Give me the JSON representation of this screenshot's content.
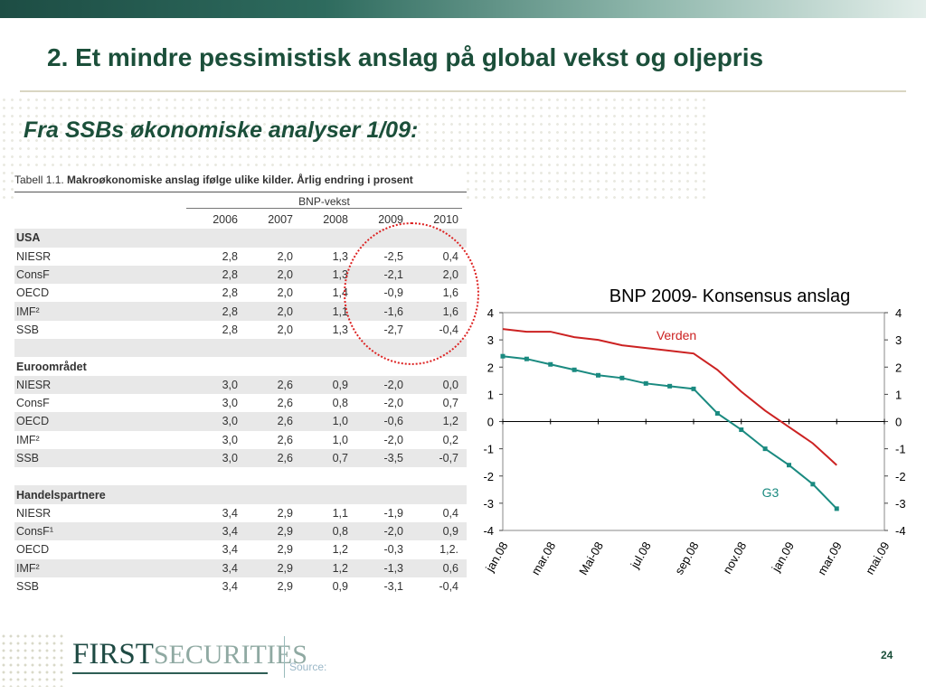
{
  "slide": {
    "title": "2. Et mindre pessimistisk anslag på global vekst og oljepris",
    "subtitle": "Fra SSBs økonomiske analyser 1/09:",
    "source_label": "Source:",
    "page_number": "24",
    "logo_first": "FIRST",
    "logo_second": "SECURITIES"
  },
  "table": {
    "caption_prefix": "Tabell 1.1.",
    "caption_text": "Makroøkonomiske anslag ifølge ulike kilder. Årlig endring i prosent",
    "group_header": "BNP-vekst",
    "years": [
      "2006",
      "2007",
      "2008",
      "2009",
      "2010"
    ],
    "sections": [
      {
        "name": "USA",
        "rows": [
          {
            "label": "NIESR",
            "values": [
              "2,8",
              "2,0",
              "1,3",
              "-2,5",
              "0,4"
            ]
          },
          {
            "label": "ConsF",
            "values": [
              "2,8",
              "2,0",
              "1,3",
              "-2,1",
              "2,0"
            ]
          },
          {
            "label": "OECD",
            "values": [
              "2,8",
              "2,0",
              "1,4",
              "-0,9",
              "1,6"
            ]
          },
          {
            "label": "IMF²",
            "values": [
              "2,8",
              "2,0",
              "1,1",
              "-1,6",
              "1,6"
            ]
          },
          {
            "label": "SSB",
            "values": [
              "2,8",
              "2,0",
              "1,3",
              "-2,7",
              "-0,4"
            ]
          }
        ]
      },
      {
        "name": "Euroområdet",
        "rows": [
          {
            "label": "NIESR",
            "values": [
              "3,0",
              "2,6",
              "0,9",
              "-2,0",
              "0,0"
            ]
          },
          {
            "label": "ConsF",
            "values": [
              "3,0",
              "2,6",
              "0,8",
              "-2,0",
              "0,7"
            ]
          },
          {
            "label": "OECD",
            "values": [
              "3,0",
              "2,6",
              "1,0",
              "-0,6",
              "1,2"
            ]
          },
          {
            "label": "IMF²",
            "values": [
              "3,0",
              "2,6",
              "1,0",
              "-2,0",
              "0,2"
            ]
          },
          {
            "label": "SSB",
            "values": [
              "3,0",
              "2,6",
              "0,7",
              "-3,5",
              "-0,7"
            ]
          }
        ]
      },
      {
        "name": "Handelspartnere",
        "rows": [
          {
            "label": "NIESR",
            "values": [
              "3,4",
              "2,9",
              "1,1",
              "-1,9",
              "0,4"
            ]
          },
          {
            "label": "ConsF¹",
            "values": [
              "3,4",
              "2,9",
              "0,8",
              "-2,0",
              "0,9"
            ]
          },
          {
            "label": "OECD",
            "values": [
              "3,4",
              "2,9",
              "1,2",
              "-0,3",
              "1,2."
            ]
          },
          {
            "label": "IMF²",
            "values": [
              "3,4",
              "2,9",
              "1,2",
              "-1,3",
              "0,6"
            ]
          },
          {
            "label": "SSB",
            "values": [
              "3,4",
              "2,9",
              "0,9",
              "-3,1",
              "-0,4"
            ]
          }
        ]
      }
    ]
  },
  "chart_data": {
    "type": "line",
    "title": "BNP 2009- Konsensus anslag",
    "x_labels": [
      "jan.08",
      "mar.08",
      "Mai-08",
      "jul.08",
      "sep.08",
      "nov.08",
      "jan.09",
      "mar.09",
      "mai.09"
    ],
    "ylim": [
      -4,
      4
    ],
    "yticks": [
      "4",
      "3",
      "2",
      "1",
      "0",
      "-1",
      "-2",
      "-3",
      "-4"
    ],
    "grid": false,
    "series": [
      {
        "name": "Verden",
        "color": "#cc2222",
        "marker": "none",
        "values": [
          3.4,
          3.3,
          3.3,
          3.1,
          3.0,
          2.8,
          2.7,
          2.6,
          2.5,
          1.9,
          1.1,
          0.4,
          -0.2,
          -0.8,
          -1.6
        ]
      },
      {
        "name": "G3",
        "color": "#1a8a80",
        "marker": "square",
        "values": [
          2.4,
          2.3,
          2.1,
          1.9,
          1.7,
          1.6,
          1.4,
          1.3,
          1.2,
          0.3,
          -0.3,
          -1.0,
          -1.6,
          -2.3,
          -3.2
        ]
      }
    ]
  }
}
